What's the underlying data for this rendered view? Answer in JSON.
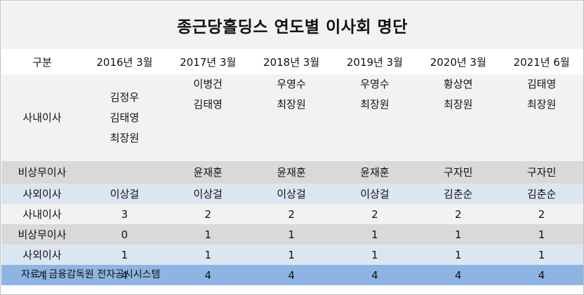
{
  "title": "종근당홀딩스 연도별 이사회 명단",
  "header": {
    "label": "구분",
    "years": [
      "2016년 3월",
      "2017년 3월",
      "2018년 3월",
      "2019년 3월",
      "2020년 3월",
      "2021년 6월"
    ]
  },
  "rows": {
    "inside": {
      "label": "사내이사",
      "cols": [
        [
          "김정우",
          "김태영",
          "최장원"
        ],
        [
          "이병건",
          "김태영"
        ],
        [
          "우영수",
          "최장원"
        ],
        [
          "우영수",
          "최장원"
        ],
        [
          "황상연",
          "최장원"
        ],
        [
          "김태영",
          "최장원"
        ]
      ]
    },
    "nonexec": {
      "label": "비상무이사",
      "cols": [
        "",
        "윤재훈",
        "윤재훈",
        "윤재훈",
        "구자민",
        "구자민"
      ]
    },
    "outside": {
      "label": "사외이사",
      "cols": [
        "이상걸",
        "이상걸",
        "이상걸",
        "이상걸",
        "김춘순",
        "김춘순"
      ]
    }
  },
  "counts": {
    "inside": {
      "label": "사내이사",
      "values": [
        "3",
        "2",
        "2",
        "2",
        "2",
        "2"
      ]
    },
    "nonexec": {
      "label": "비상무이사",
      "values": [
        "0",
        "1",
        "1",
        "1",
        "1",
        "1"
      ]
    },
    "outside": {
      "label": "사외이사",
      "values": [
        "1",
        "1",
        "1",
        "1",
        "1",
        "1"
      ]
    },
    "total": {
      "label": "계",
      "values": [
        "4",
        "4",
        "4",
        "4",
        "4",
        "4"
      ]
    }
  },
  "source": "자료 : 금융감독원 전자공시시스템"
}
